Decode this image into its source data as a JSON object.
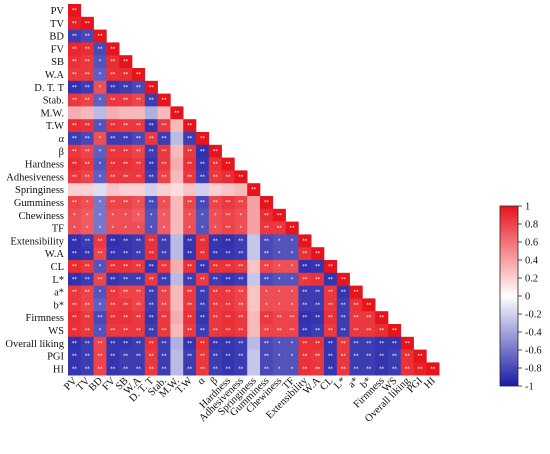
{
  "chart_data": {
    "type": "heatmap",
    "layout": "lower-triangle",
    "variables": [
      "PV",
      "TV",
      "BD",
      "FV",
      "SB",
      "W.A",
      "D. T. T",
      "Stab.",
      "M.W.",
      "T.W",
      "α",
      "β",
      "Hardness",
      "Adhesiveness",
      "Springiness",
      "Gumminess",
      "Chewiness",
      "TF",
      "Extensibility",
      "W.A",
      "CL",
      "L*",
      "a*",
      "b*",
      "Firmness",
      "WS",
      "Overall liking",
      "PGI",
      "HI"
    ],
    "colorbar": {
      "min": -1,
      "max": 1,
      "ticks": [
        "1",
        "0.8",
        "0.6",
        "0.4",
        "0.2",
        "0",
        "-0.2",
        "-0.4",
        "-0.6",
        "-0.8",
        "-1"
      ],
      "colors": {
        "positive": "#e8141c",
        "neutral": "#ffffff",
        "negative": "#1a1aa6"
      }
    },
    "values": [
      [
        1
      ],
      [
        0.95,
        1
      ],
      [
        -0.85,
        -0.8,
        1
      ],
      [
        0.92,
        0.9,
        -0.8,
        1
      ],
      [
        0.88,
        0.85,
        -0.75,
        0.9,
        1
      ],
      [
        0.85,
        0.85,
        -0.7,
        0.88,
        0.9,
        1
      ],
      [
        -0.9,
        -0.85,
        0.75,
        -0.88,
        -0.85,
        -0.8,
        1
      ],
      [
        0.85,
        0.8,
        -0.7,
        0.85,
        0.85,
        0.8,
        -0.85,
        1
      ],
      [
        0.35,
        0.3,
        -0.3,
        0.35,
        0.3,
        0.3,
        -0.35,
        0.3,
        1
      ],
      [
        0.9,
        0.88,
        -0.75,
        0.88,
        0.85,
        0.85,
        -0.88,
        0.85,
        0.3,
        1
      ],
      [
        -0.85,
        -0.8,
        0.75,
        -0.85,
        -0.85,
        -0.8,
        0.85,
        -0.85,
        -0.3,
        -0.85,
        1
      ],
      [
        0.85,
        0.8,
        -0.7,
        0.85,
        0.85,
        0.8,
        -0.85,
        0.85,
        0.3,
        0.85,
        -0.9,
        1
      ],
      [
        0.9,
        0.85,
        -0.75,
        0.88,
        0.88,
        0.85,
        -0.88,
        0.85,
        0.35,
        0.88,
        -0.88,
        0.88,
        1
      ],
      [
        0.85,
        0.8,
        -0.7,
        0.85,
        0.85,
        0.85,
        -0.85,
        0.8,
        0.3,
        0.85,
        -0.85,
        0.85,
        0.9,
        1
      ],
      [
        0.2,
        0.2,
        -0.15,
        0.25,
        0.2,
        0.2,
        -0.2,
        0.2,
        0.15,
        0.25,
        -0.2,
        0.2,
        0.25,
        0.3,
        1
      ],
      [
        0.8,
        0.75,
        -0.6,
        0.8,
        0.8,
        0.75,
        -0.8,
        0.75,
        0.3,
        0.8,
        -0.8,
        0.8,
        0.85,
        0.8,
        0.4,
        1
      ],
      [
        0.75,
        0.7,
        -0.6,
        0.75,
        0.75,
        0.7,
        -0.75,
        0.7,
        0.3,
        0.75,
        -0.75,
        0.75,
        0.8,
        0.75,
        0.4,
        0.9,
        1
      ],
      [
        0.75,
        0.7,
        -0.6,
        0.75,
        0.75,
        0.75,
        -0.75,
        0.7,
        0.3,
        0.75,
        -0.75,
        0.75,
        0.8,
        0.75,
        0.4,
        0.85,
        0.85,
        1
      ],
      [
        -0.9,
        -0.85,
        0.85,
        -0.9,
        -0.88,
        -0.85,
        0.88,
        -0.85,
        -0.3,
        -0.88,
        0.88,
        -0.88,
        -0.9,
        -0.85,
        -0.25,
        -0.8,
        -0.75,
        -0.75,
        1
      ],
      [
        -0.9,
        -0.88,
        0.8,
        -0.88,
        -0.88,
        -0.85,
        0.88,
        -0.85,
        -0.3,
        -0.88,
        0.88,
        -0.88,
        -0.88,
        -0.85,
        -0.25,
        -0.8,
        -0.75,
        -0.75,
        0.88,
        1
      ],
      [
        0.9,
        0.85,
        -0.75,
        0.88,
        0.88,
        0.85,
        -0.88,
        0.85,
        0.35,
        0.88,
        -0.88,
        0.88,
        0.88,
        0.85,
        0.25,
        0.8,
        0.75,
        0.75,
        -0.9,
        -0.88,
        1
      ],
      [
        -0.9,
        -0.85,
        0.8,
        -0.88,
        -0.85,
        -0.85,
        0.85,
        -0.85,
        -0.3,
        -0.85,
        0.85,
        -0.85,
        -0.88,
        -0.85,
        -0.25,
        -0.8,
        -0.75,
        -0.75,
        0.85,
        0.88,
        -0.88,
        1
      ],
      [
        0.85,
        0.8,
        -0.75,
        0.85,
        0.8,
        0.8,
        -0.85,
        0.8,
        0.3,
        0.85,
        -0.85,
        0.85,
        0.85,
        0.8,
        0.25,
        0.75,
        0.75,
        0.75,
        -0.85,
        -0.85,
        0.85,
        -0.88,
        1
      ],
      [
        0.85,
        0.8,
        -0.7,
        0.85,
        0.85,
        0.8,
        -0.85,
        0.8,
        0.3,
        0.85,
        -0.85,
        0.85,
        0.85,
        0.8,
        0.25,
        0.75,
        0.75,
        0.75,
        -0.85,
        -0.85,
        0.85,
        -0.85,
        0.88,
        1
      ],
      [
        0.9,
        0.85,
        -0.8,
        0.88,
        0.88,
        0.85,
        -0.88,
        0.85,
        0.35,
        0.88,
        -0.88,
        0.85,
        0.9,
        0.85,
        0.3,
        0.85,
        0.8,
        0.8,
        -0.9,
        -0.88,
        0.88,
        -0.85,
        0.85,
        0.85,
        1
      ],
      [
        0.88,
        0.85,
        -0.75,
        0.85,
        0.85,
        0.85,
        -0.85,
        0.85,
        0.3,
        0.85,
        -0.85,
        0.85,
        0.88,
        0.85,
        0.3,
        0.8,
        0.8,
        0.8,
        -0.88,
        -0.85,
        0.85,
        -0.85,
        0.85,
        0.85,
        0.9,
        1
      ],
      [
        -0.9,
        -0.85,
        0.8,
        -0.88,
        -0.88,
        -0.85,
        0.88,
        -0.85,
        -0.35,
        -0.88,
        0.88,
        -0.88,
        -0.88,
        -0.85,
        -0.3,
        -0.8,
        -0.75,
        -0.75,
        0.88,
        0.88,
        -0.88,
        0.85,
        -0.85,
        -0.85,
        -0.88,
        -0.88,
        1
      ],
      [
        -0.88,
        -0.85,
        0.8,
        -0.88,
        -0.85,
        -0.85,
        0.85,
        -0.85,
        -0.3,
        -0.85,
        0.85,
        -0.85,
        -0.88,
        -0.85,
        -0.25,
        -0.8,
        -0.75,
        -0.75,
        0.88,
        0.85,
        -0.88,
        0.85,
        -0.85,
        -0.85,
        -0.88,
        -0.85,
        0.88,
        1
      ],
      [
        -0.88,
        -0.85,
        0.8,
        -0.88,
        -0.85,
        -0.85,
        0.85,
        -0.85,
        -0.3,
        -0.85,
        0.85,
        -0.85,
        -0.88,
        -0.85,
        -0.25,
        -0.8,
        -0.75,
        -0.75,
        0.88,
        0.85,
        -0.88,
        0.85,
        -0.85,
        -0.85,
        -0.88,
        -0.85,
        0.88,
        0.95,
        1
      ]
    ]
  }
}
